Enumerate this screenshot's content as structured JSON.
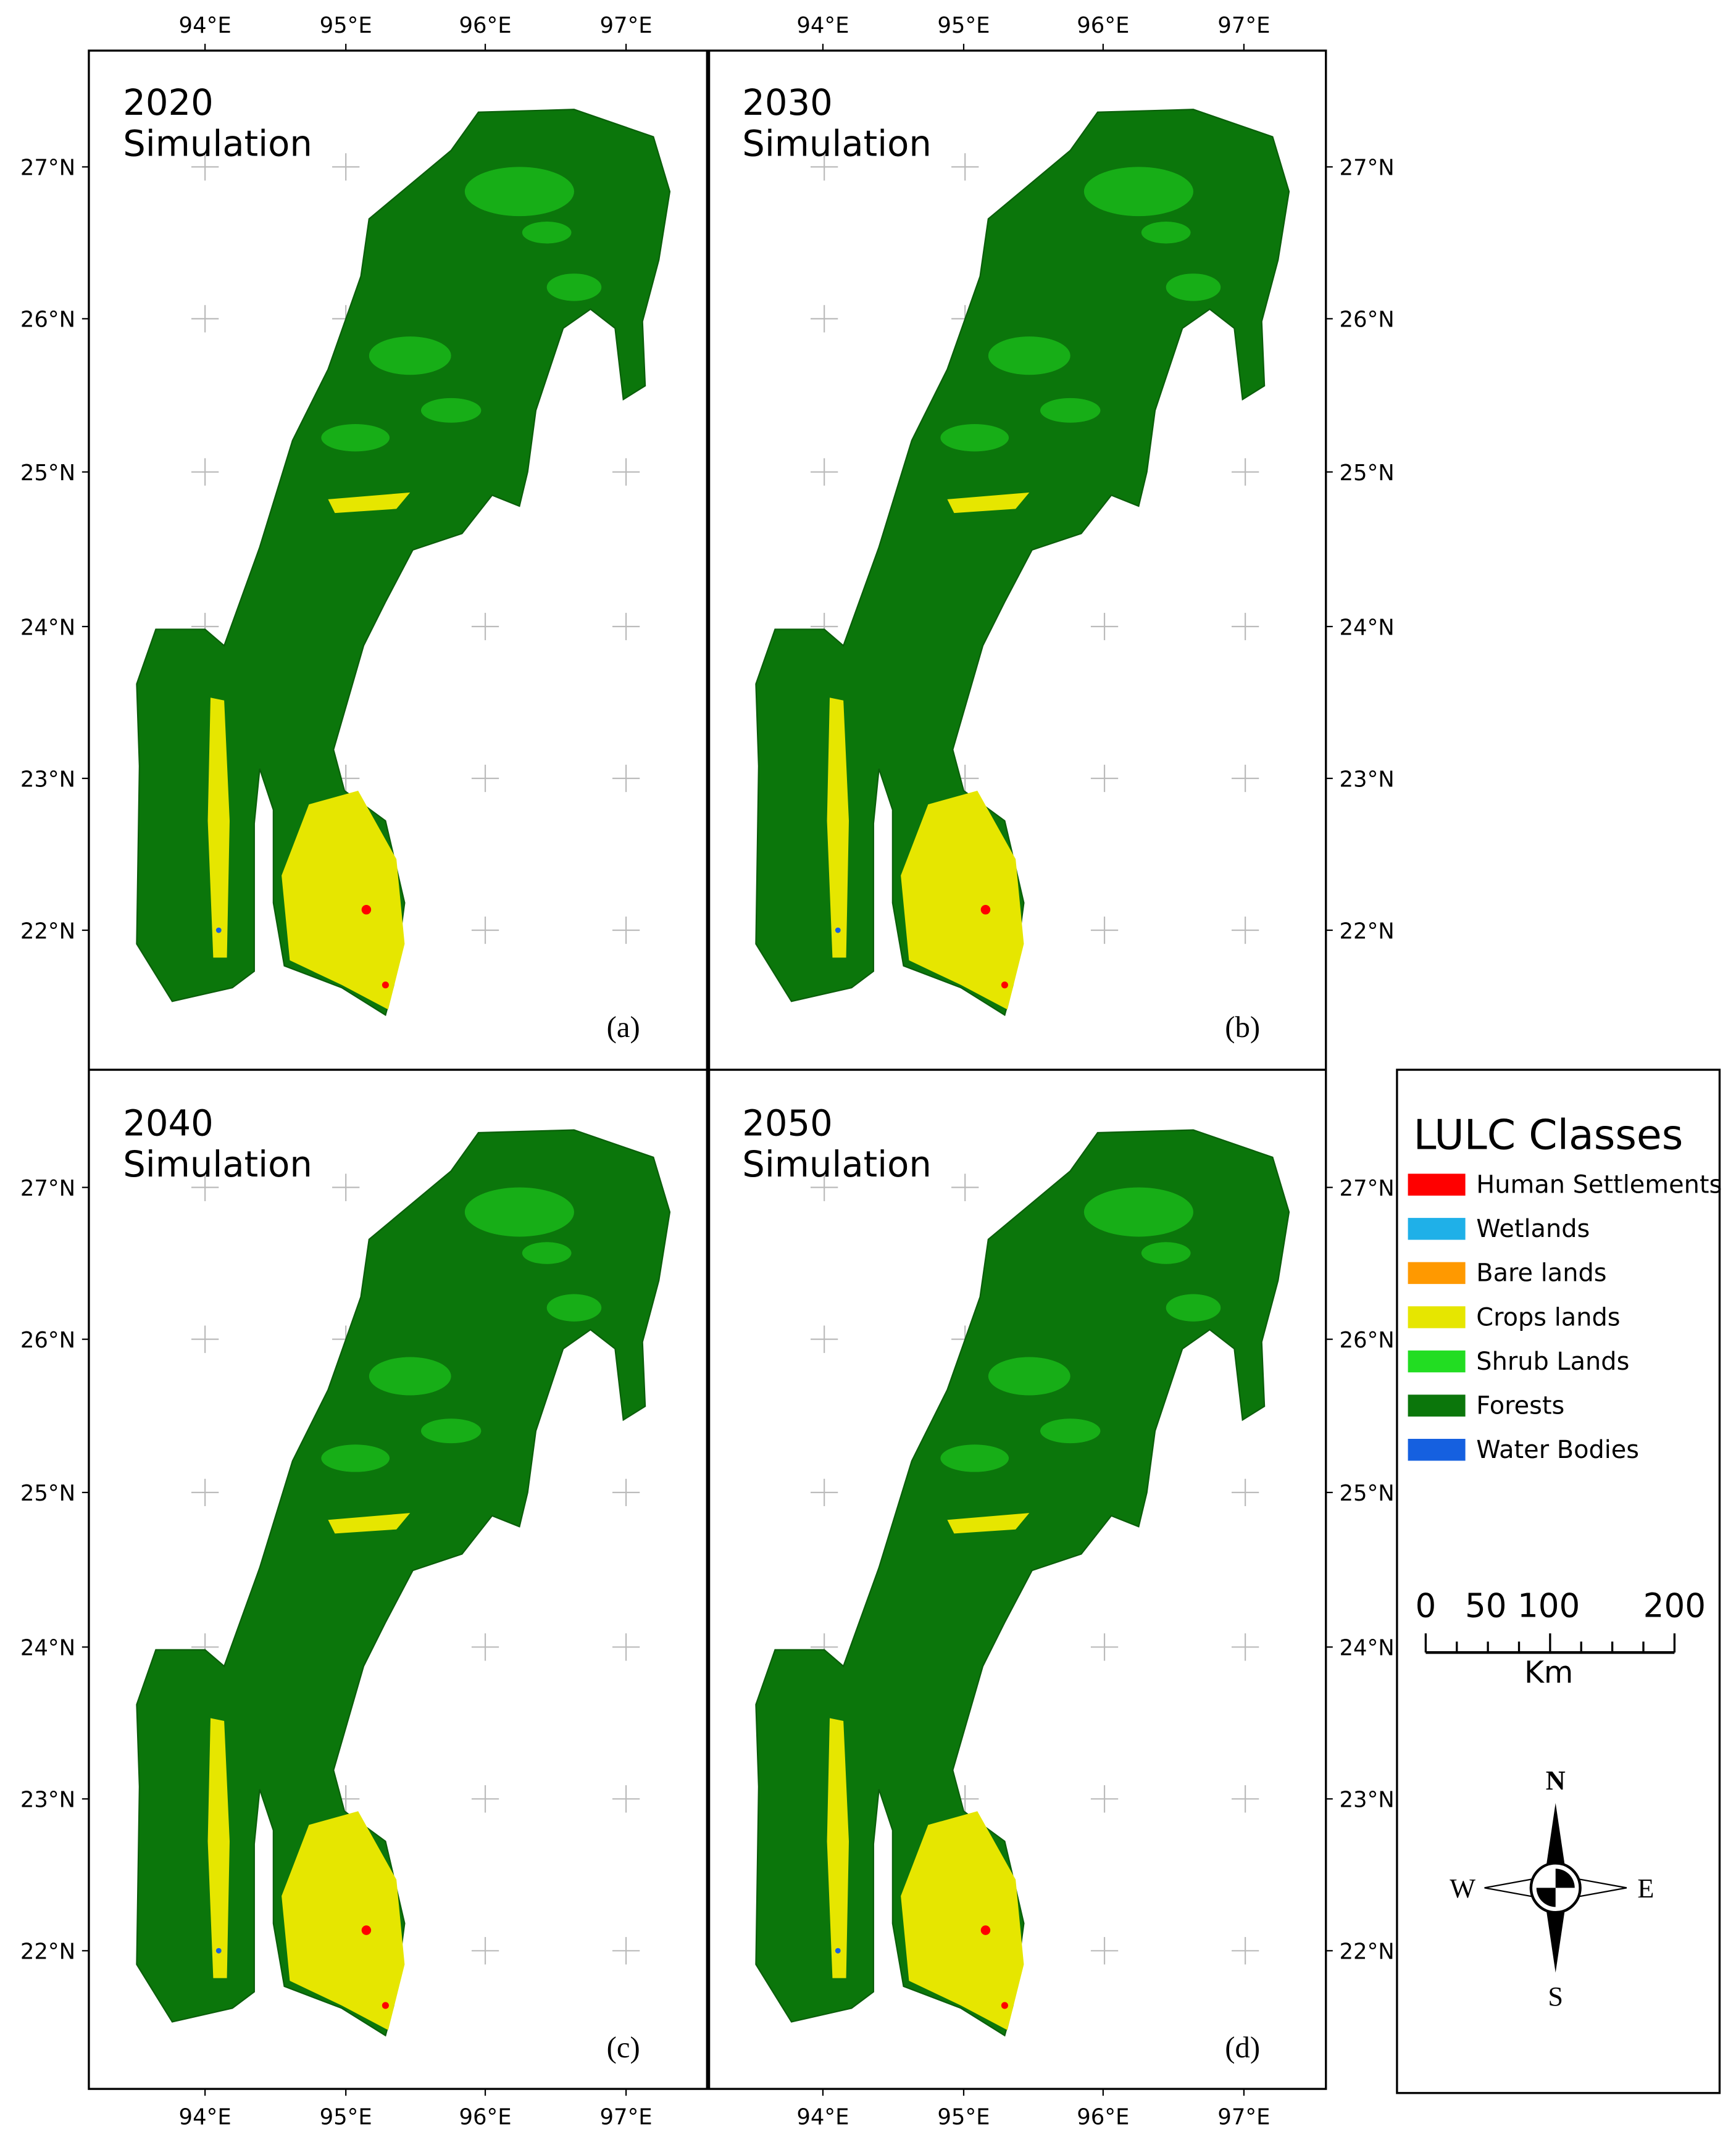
{
  "panels": [
    {
      "year": "2020",
      "subtitle": "Simulation",
      "label": "(a)"
    },
    {
      "year": "2030",
      "subtitle": "Simulation",
      "label": "(b)"
    },
    {
      "year": "2040",
      "subtitle": "Simulation",
      "label": "(c)"
    },
    {
      "year": "2050",
      "subtitle": "Simulation",
      "label": "(d)"
    }
  ],
  "longitude_labels": [
    "94°E",
    "95°E",
    "96°E",
    "97°E"
  ],
  "latitude_labels": [
    "27°N",
    "26°N",
    "25°N",
    "24°N",
    "23°N",
    "22°N"
  ],
  "legend": {
    "title": "LULC Classes",
    "classes": [
      {
        "name": "Human Settlements",
        "color": "#ff0000"
      },
      {
        "name": "Wetlands",
        "color": "#1fb0e8"
      },
      {
        "name": "Bare lands",
        "color": "#ff9900"
      },
      {
        "name": "Crops lands",
        "color": "#e6e600"
      },
      {
        "name": "Shrub Lands",
        "color": "#22dd22"
      },
      {
        "name": "Forests",
        "color": "#0b760b"
      },
      {
        "name": "Water Bodies",
        "color": "#1560e0"
      }
    ]
  },
  "scale_bar": {
    "labels": [
      "0",
      "50",
      "100",
      "200"
    ],
    "unit": "Km"
  },
  "compass": {
    "north": "N",
    "south": "S",
    "east": "E",
    "west": "W"
  }
}
